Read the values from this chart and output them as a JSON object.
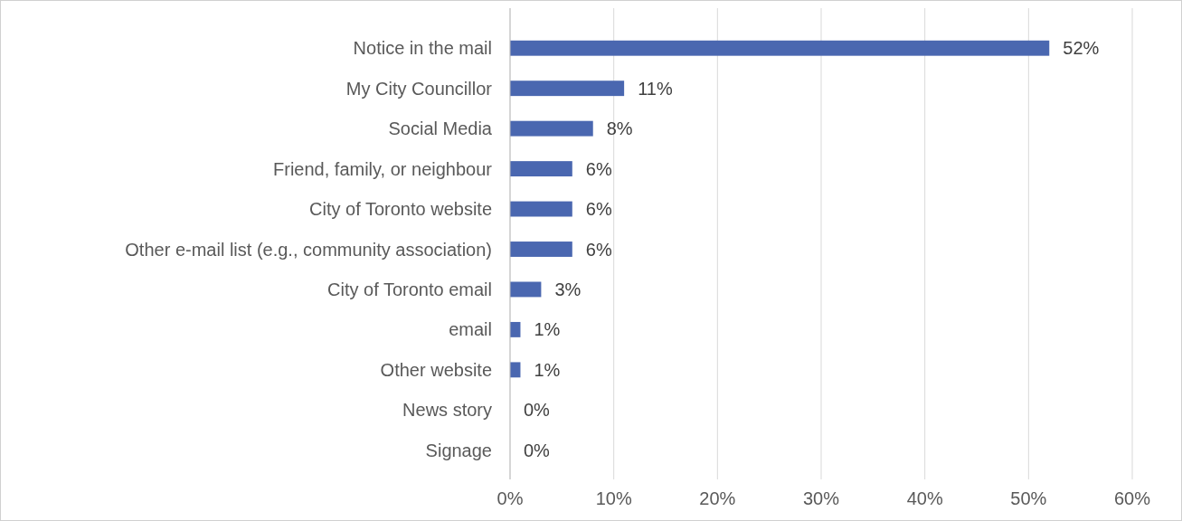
{
  "chart_data": {
    "type": "bar",
    "orientation": "horizontal",
    "categories": [
      "Notice in the mail",
      "My City Councillor",
      "Social Media",
      "Friend, family, or neighbour",
      "City of Toronto website",
      "Other e-mail list (e.g., community association)",
      "City of Toronto email",
      "email",
      "Other website",
      "News story",
      "Signage"
    ],
    "values": [
      52,
      11,
      8,
      6,
      6,
      6,
      3,
      1,
      1,
      0,
      0
    ],
    "value_labels": [
      "52%",
      "11%",
      "8%",
      "6%",
      "6%",
      "6%",
      "3%",
      "1%",
      "1%",
      "0%",
      "0%"
    ],
    "color": "#4a67b0",
    "xlim": [
      0,
      60
    ],
    "xticks": [
      {
        "value": 0,
        "label": "0%"
      },
      {
        "value": 10,
        "label": "10%"
      },
      {
        "value": 20,
        "label": "20%"
      },
      {
        "value": 30,
        "label": "30%"
      },
      {
        "value": 40,
        "label": "40%"
      },
      {
        "value": 50,
        "label": "50%"
      },
      {
        "value": 60,
        "label": "60%"
      }
    ],
    "grid": "x"
  }
}
